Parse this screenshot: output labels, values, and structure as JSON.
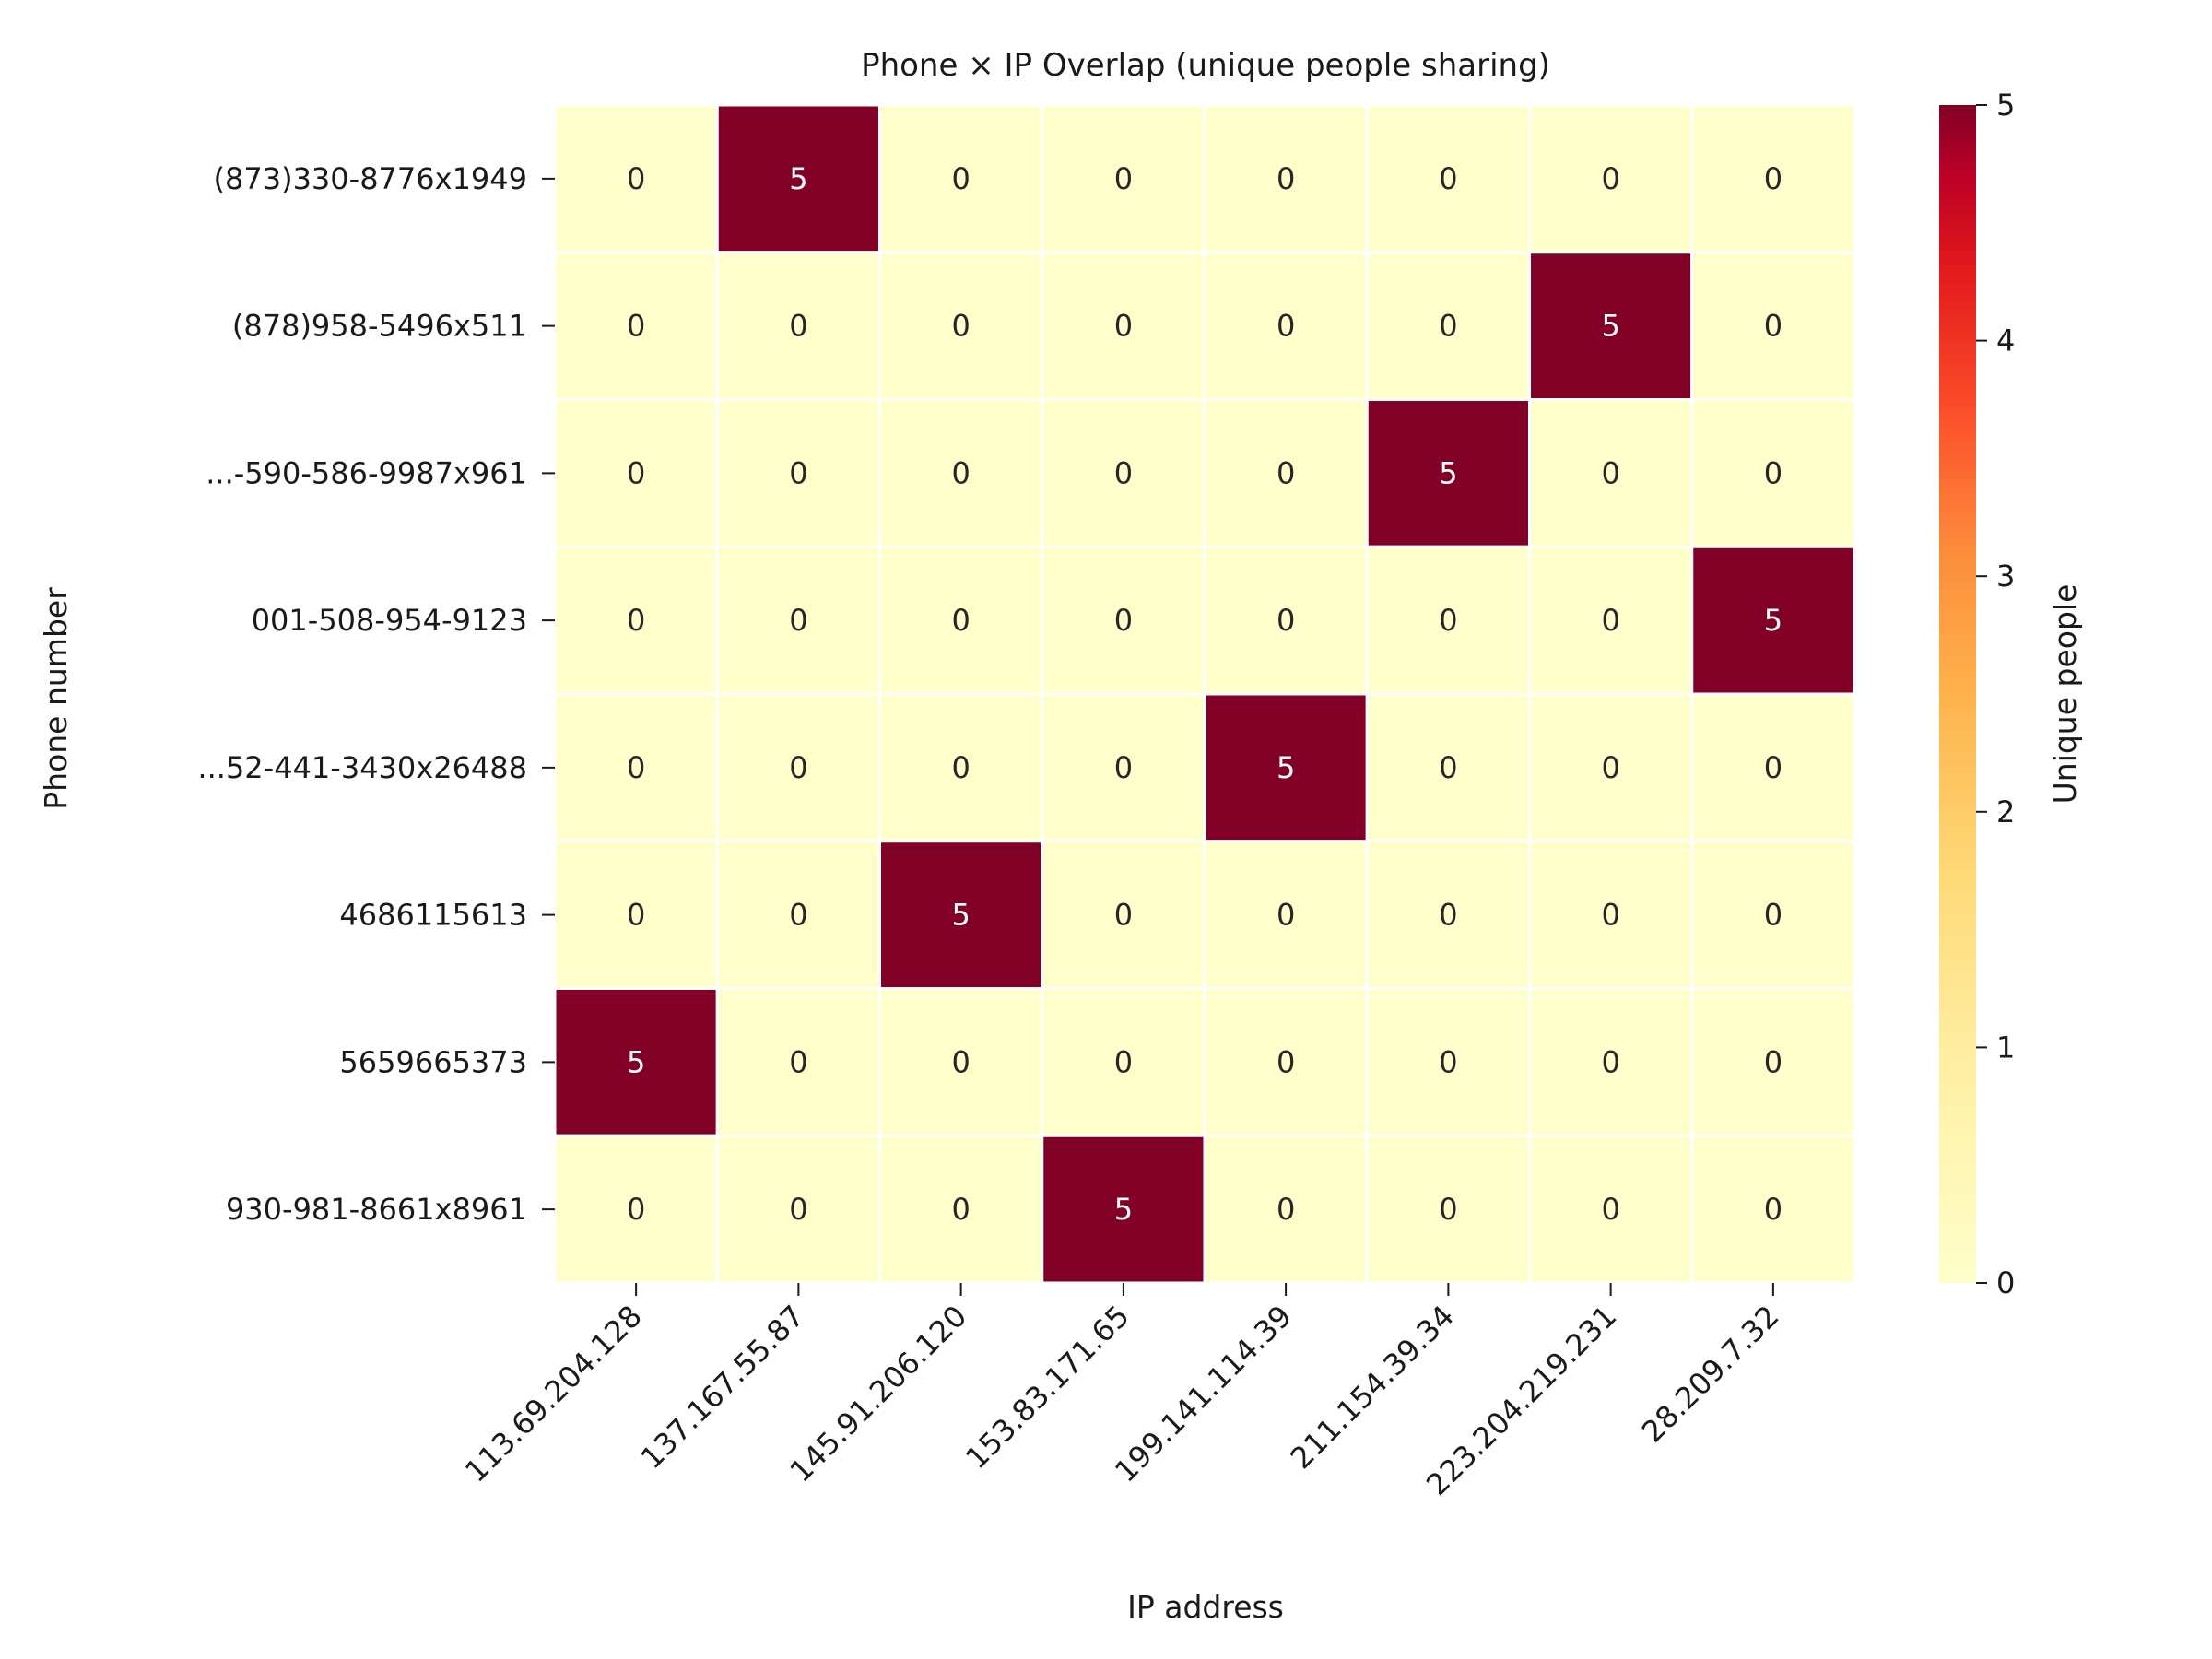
{
  "chart_data": {
    "type": "heatmap",
    "title": "Phone × IP Overlap (unique people sharing)",
    "xlabel": "IP address",
    "ylabel": "Phone number",
    "x_categories": [
      "113.69.204.128",
      "137.167.55.87",
      "145.91.206.120",
      "153.83.171.65",
      "199.141.114.39",
      "211.154.39.34",
      "223.204.219.231",
      "28.209.7.32"
    ],
    "y_categories": [
      "(873)330-8776x1949",
      "(878)958-5496x511",
      "...-590-586-9987x961",
      "001-508-954-9123",
      "...52-441-3430x26488",
      "4686115613",
      "5659665373",
      "930-981-8661x8961"
    ],
    "values": [
      [
        0,
        5,
        0,
        0,
        0,
        0,
        0,
        0
      ],
      [
        0,
        0,
        0,
        0,
        0,
        0,
        5,
        0
      ],
      [
        0,
        0,
        0,
        0,
        0,
        5,
        0,
        0
      ],
      [
        0,
        0,
        0,
        0,
        0,
        0,
        0,
        5
      ],
      [
        0,
        0,
        0,
        0,
        5,
        0,
        0,
        0
      ],
      [
        0,
        0,
        5,
        0,
        0,
        0,
        0,
        0
      ],
      [
        5,
        0,
        0,
        0,
        0,
        0,
        0,
        0
      ],
      [
        0,
        0,
        0,
        5,
        0,
        0,
        0,
        0
      ]
    ],
    "colorbar": {
      "label": "Unique people",
      "range": [
        0,
        5
      ],
      "ticks": [
        "0",
        "1",
        "2",
        "3",
        "4",
        "5"
      ],
      "colormap": "YlOrRd",
      "low_color": "#ffffcc",
      "high_color": "#800026"
    },
    "grid": false
  }
}
